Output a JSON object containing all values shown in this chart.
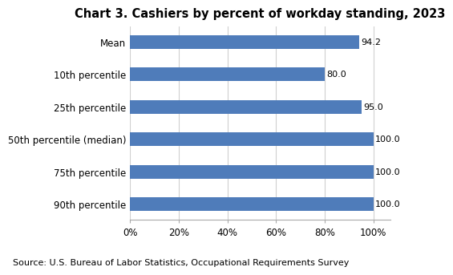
{
  "title": "Chart 3. Cashiers by percent of workday standing, 2023",
  "categories": [
    "Mean",
    "10th percentile",
    "25th percentile",
    "50th percentile (median)",
    "75th percentile",
    "90th percentile"
  ],
  "values": [
    94.2,
    80.0,
    95.0,
    100.0,
    100.0,
    100.0
  ],
  "bar_color": "#4f7cba",
  "bar_height": 0.42,
  "xlim": [
    0,
    100
  ],
  "xtick_values": [
    0,
    20,
    40,
    60,
    80,
    100
  ],
  "xtick_labels": [
    "0%",
    "20%",
    "40%",
    "60%",
    "80%",
    "100%"
  ],
  "source_text": "Source: U.S. Bureau of Labor Statistics, Occupational Requirements Survey",
  "title_fontsize": 10.5,
  "label_fontsize": 8.5,
  "tick_fontsize": 8.5,
  "source_fontsize": 8,
  "value_label_fontsize": 8,
  "grid_color": "#d0d0d0",
  "background_color": "#ffffff"
}
